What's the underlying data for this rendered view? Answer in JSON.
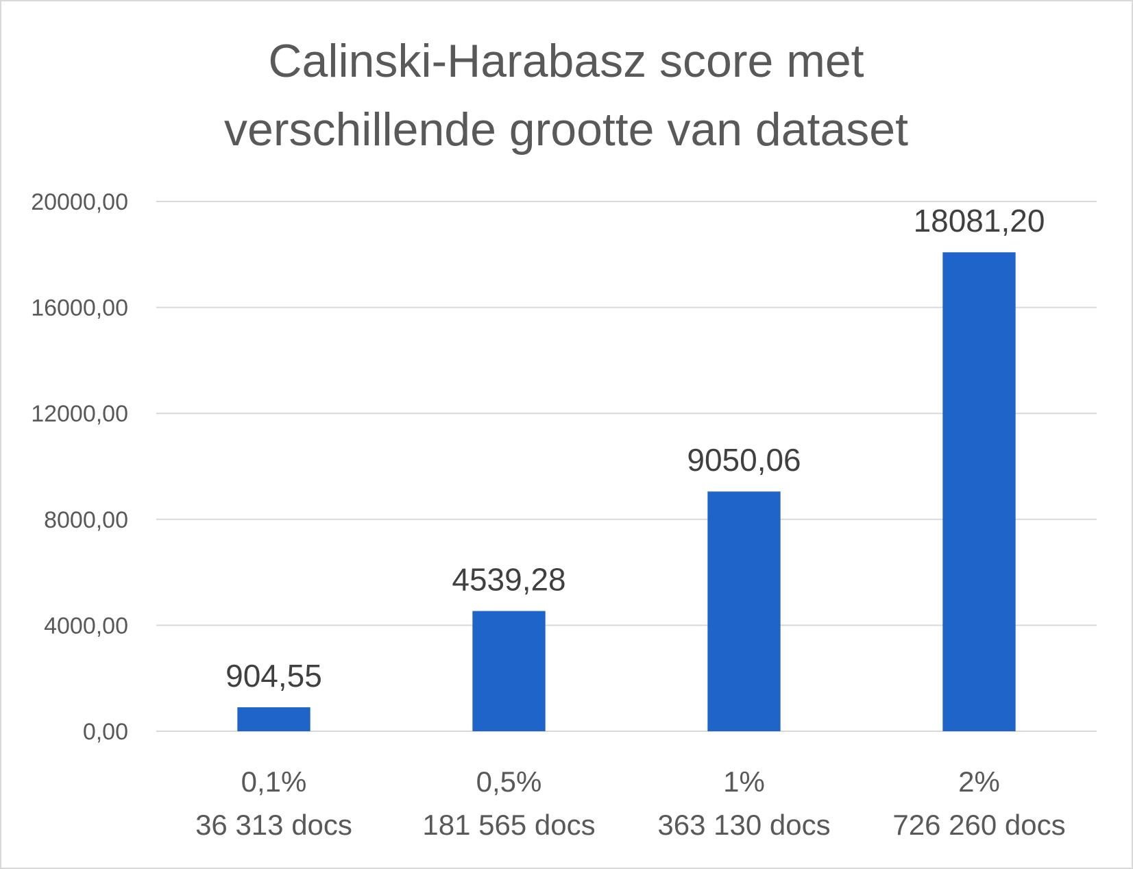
{
  "chart_data": {
    "type": "bar",
    "title": [
      "Calinski-Harabasz score met",
      "verschillende grootte van dataset"
    ],
    "xlabel": "",
    "ylabel": "",
    "categories": [
      [
        "0,1%",
        "36 313 docs"
      ],
      [
        "0,5%",
        "181 565 docs"
      ],
      [
        "1%",
        "363 130 docs"
      ],
      [
        "2%",
        "726 260 docs"
      ]
    ],
    "values": [
      904.55,
      4539.28,
      9050.06,
      18081.2
    ],
    "data_labels": [
      "904,55",
      "4539,28",
      "9050,06",
      "18081,20"
    ],
    "ylim": [
      0,
      20000
    ],
    "yticks": [
      0,
      4000,
      8000,
      12000,
      16000,
      20000
    ],
    "ytick_labels": [
      "0,00",
      "4000,00",
      "8000,00",
      "12000,00",
      "16000,00",
      "20000,00"
    ],
    "grid": true,
    "legend": "none",
    "colors": {
      "bar": "#1f64c8",
      "grid": "#d9d9d9",
      "text": "#595959",
      "data_label": "#404040"
    }
  }
}
